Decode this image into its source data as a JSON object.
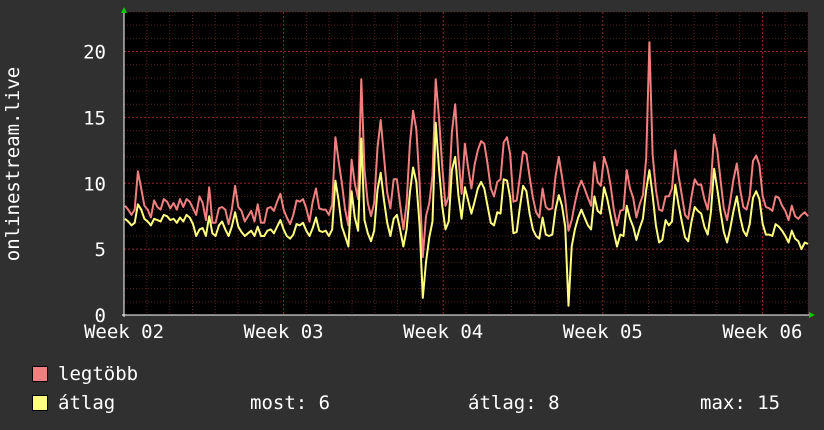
{
  "chart_data": {
    "type": "line",
    "ylabel": "onlinestream.live",
    "ylim": [
      0,
      23
    ],
    "yticks": [
      0,
      5,
      10,
      15,
      20
    ],
    "x_tick_labels": [
      "Week 02",
      "Week 03",
      "Week 04",
      "Week 05",
      "Week 06"
    ],
    "x_tick_positions": [
      0,
      7,
      14,
      21,
      28
    ],
    "xlim": [
      0,
      30
    ],
    "grid": true,
    "background": "#000000",
    "grid_color": "#5a1e1e",
    "series": [
      {
        "name": "legtöbb",
        "color": "#f07f7f",
        "values": [
          8.3,
          8.0,
          7.6,
          8.0,
          10.9,
          9.6,
          8.3,
          8.0,
          7.4,
          8.7,
          8.2,
          8.0,
          8.8,
          8.6,
          8.1,
          8.5,
          8.0,
          8.8,
          8.2,
          8.8,
          8.6,
          8.1,
          7.6,
          9.0,
          8.5,
          7.2,
          9.7,
          7.0,
          7.0,
          8.1,
          8.2,
          8.0,
          6.9,
          8.0,
          9.8,
          8.2,
          7.9,
          7.1,
          7.5,
          7.9,
          7.1,
          8.4,
          7.0,
          7.0,
          8.1,
          8.2,
          7.9,
          8.6,
          9.2,
          8.0,
          7.4,
          6.9,
          7.6,
          8.7,
          8.6,
          8.8,
          8.1,
          7.1,
          8.6,
          9.6,
          8.1,
          8.0,
          8.0,
          7.6,
          8.4,
          13.5,
          11.7,
          10.0,
          8.0,
          6.8,
          11.8,
          10.0,
          8.8,
          17.9,
          11.0,
          8.5,
          7.5,
          8.5,
          12.7,
          14.8,
          12.0,
          9.3,
          8.1,
          10.3,
          10.3,
          8.4,
          6.5,
          8.5,
          13.0,
          15.5,
          14.1,
          10.0,
          4.4,
          7.5,
          8.5,
          10.6,
          17.9,
          15.0,
          11.3,
          8.3,
          9.0,
          13.9,
          16.0,
          12.0,
          9.2,
          13.0,
          11.2,
          9.6,
          11.4,
          12.5,
          13.2,
          13.0,
          11.5,
          9.6,
          9.0,
          10.1,
          10.3,
          13.1,
          13.5,
          12.2,
          8.6,
          8.7,
          10.5,
          12.4,
          12.2,
          10.5,
          8.9,
          7.8,
          7.4,
          9.6,
          8.2,
          8.0,
          8.1,
          10.5,
          12.0,
          10.5,
          8.8,
          6.4,
          7.2,
          8.5,
          9.6,
          10.2,
          9.6,
          8.9,
          8.3,
          11.6,
          10.1,
          9.8,
          12.0,
          11.2,
          9.9,
          8.0,
          6.8,
          7.9,
          8.0,
          11.0,
          9.6,
          8.9,
          7.4,
          8.4,
          9.1,
          11.9,
          20.7,
          12.2,
          9.5,
          8.0,
          7.9,
          9.0,
          9.0,
          9.6,
          12.5,
          10.6,
          9.1,
          7.6,
          7.3,
          9.0,
          10.3,
          9.9,
          9.9,
          8.8,
          8.0,
          9.9,
          13.7,
          12.4,
          10.2,
          8.1,
          7.2,
          8.7,
          10.3,
          11.5,
          9.6,
          8.2,
          8.0,
          9.0,
          11.7,
          12.1,
          11.4,
          9.0,
          8.2,
          8.1,
          7.9,
          9.0,
          8.9,
          8.3,
          7.9,
          7.2,
          8.3,
          7.5,
          7.3,
          7.6,
          7.8,
          7.5
        ]
      },
      {
        "name": "átlag",
        "color": "#ffff7f",
        "values": [
          7.3,
          7.1,
          6.8,
          7.0,
          8.4,
          8.0,
          7.3,
          7.1,
          6.8,
          7.3,
          7.2,
          7.1,
          7.6,
          7.5,
          7.2,
          7.3,
          7.0,
          7.4,
          7.1,
          7.6,
          7.4,
          6.9,
          6.0,
          6.5,
          6.6,
          6.0,
          7.5,
          6.2,
          6.0,
          6.8,
          7.1,
          6.5,
          6.0,
          6.7,
          7.8,
          6.7,
          6.3,
          6.0,
          6.2,
          6.4,
          6.0,
          6.7,
          6.0,
          6.0,
          6.4,
          6.5,
          6.2,
          6.7,
          7.2,
          6.5,
          6.0,
          5.8,
          6.1,
          6.9,
          6.8,
          7.0,
          6.4,
          6.0,
          6.6,
          7.4,
          6.4,
          6.3,
          6.4,
          6.0,
          6.5,
          10.2,
          8.7,
          6.7,
          6.0,
          5.2,
          9.4,
          7.4,
          6.4,
          13.4,
          7.2,
          6.2,
          5.6,
          6.4,
          9.5,
          10.8,
          8.7,
          7.0,
          6.0,
          7.3,
          7.6,
          6.5,
          5.2,
          6.5,
          9.3,
          11.2,
          10.1,
          6.8,
          1.3,
          4.0,
          5.9,
          7.1,
          14.6,
          11.1,
          8.3,
          6.5,
          7.1,
          11.0,
          12.0,
          9.1,
          7.3,
          9.7,
          8.7,
          7.7,
          8.6,
          9.6,
          10.1,
          9.6,
          8.3,
          7.0,
          6.8,
          7.8,
          7.7,
          10.3,
          10.2,
          8.9,
          6.2,
          6.3,
          8.2,
          9.8,
          9.4,
          7.7,
          6.5,
          6.0,
          5.8,
          7.4,
          6.1,
          6.0,
          6.1,
          8.0,
          9.1,
          8.3,
          6.7,
          0.7,
          5.2,
          6.5,
          7.4,
          8.0,
          7.4,
          6.8,
          6.5,
          9.0,
          7.9,
          7.7,
          9.7,
          8.8,
          7.6,
          6.3,
          5.2,
          6.1,
          6.0,
          8.3,
          7.3,
          6.7,
          5.7,
          6.6,
          7.3,
          9.5,
          11.0,
          9.1,
          6.8,
          5.5,
          5.7,
          7.2,
          6.8,
          7.1,
          9.9,
          8.4,
          7.1,
          5.9,
          5.6,
          7.1,
          8.2,
          7.9,
          7.7,
          6.7,
          6.1,
          7.8,
          11.1,
          9.5,
          7.8,
          6.3,
          5.5,
          6.6,
          7.9,
          9.0,
          7.5,
          6.4,
          6.0,
          6.9,
          8.9,
          9.4,
          8.8,
          6.9,
          6.1,
          6.1,
          6.0,
          6.9,
          6.7,
          6.4,
          6.0,
          5.5,
          6.4,
          5.8,
          5.6,
          5.0,
          5.5,
          5.4
        ]
      }
    ]
  },
  "legend": {
    "items": [
      {
        "label": "legtöbb",
        "color": "#f07f7f"
      },
      {
        "label": "átlag",
        "color": "#ffff7f"
      }
    ],
    "now": "most: 6",
    "avg": "átlag: 8",
    "max": "max: 15"
  }
}
